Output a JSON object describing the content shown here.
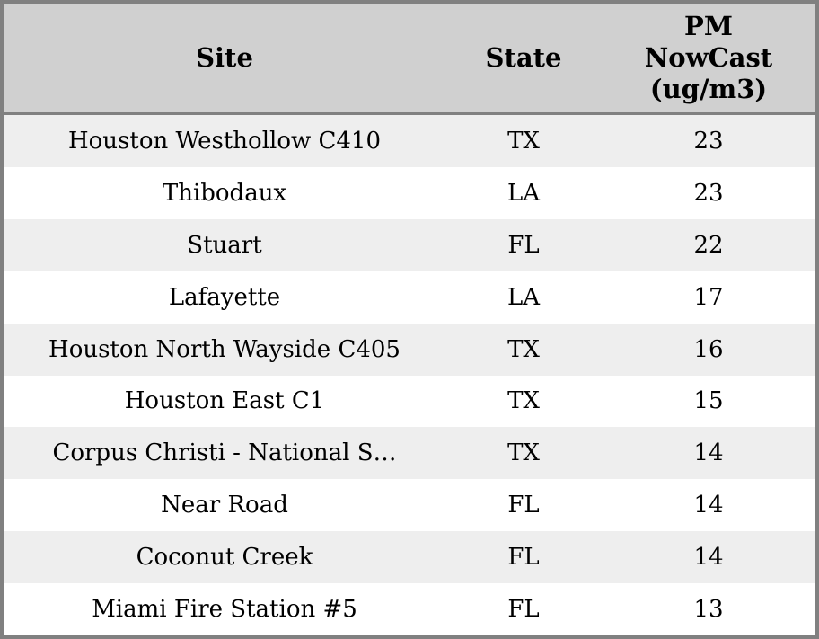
{
  "chart_data": {
    "type": "table",
    "columns": [
      {
        "label": "Site"
      },
      {
        "label": "State"
      },
      {
        "label": "PM\nNowCast\n(ug/m3)"
      }
    ],
    "rows": [
      {
        "site": "Houston Westhollow C410",
        "state": "TX",
        "pm_nowcast": "23"
      },
      {
        "site": "Thibodaux",
        "state": "LA",
        "pm_nowcast": "23"
      },
      {
        "site": "Stuart",
        "state": "FL",
        "pm_nowcast": "22"
      },
      {
        "site": "Lafayette",
        "state": "LA",
        "pm_nowcast": "17"
      },
      {
        "site": "Houston North Wayside C405",
        "state": "TX",
        "pm_nowcast": "16"
      },
      {
        "site": "Houston East C1",
        "state": "TX",
        "pm_nowcast": "15"
      },
      {
        "site": "Corpus Christi - National S…",
        "state": "TX",
        "pm_nowcast": "14"
      },
      {
        "site": "Near Road",
        "state": "FL",
        "pm_nowcast": "14"
      },
      {
        "site": "Coconut Creek",
        "state": "FL",
        "pm_nowcast": "14"
      },
      {
        "site": "Miami Fire Station #5",
        "state": "FL",
        "pm_nowcast": "13"
      }
    ],
    "layout": {
      "grid": false,
      "striped_rows": true,
      "row_count": 10,
      "column_alignment": "center"
    }
  },
  "colors": {
    "frame_border": "#808080",
    "header_background": "#d0d0d0",
    "row_stripe": "#eeeeee",
    "row_plain": "#ffffff",
    "text": "#000000"
  }
}
